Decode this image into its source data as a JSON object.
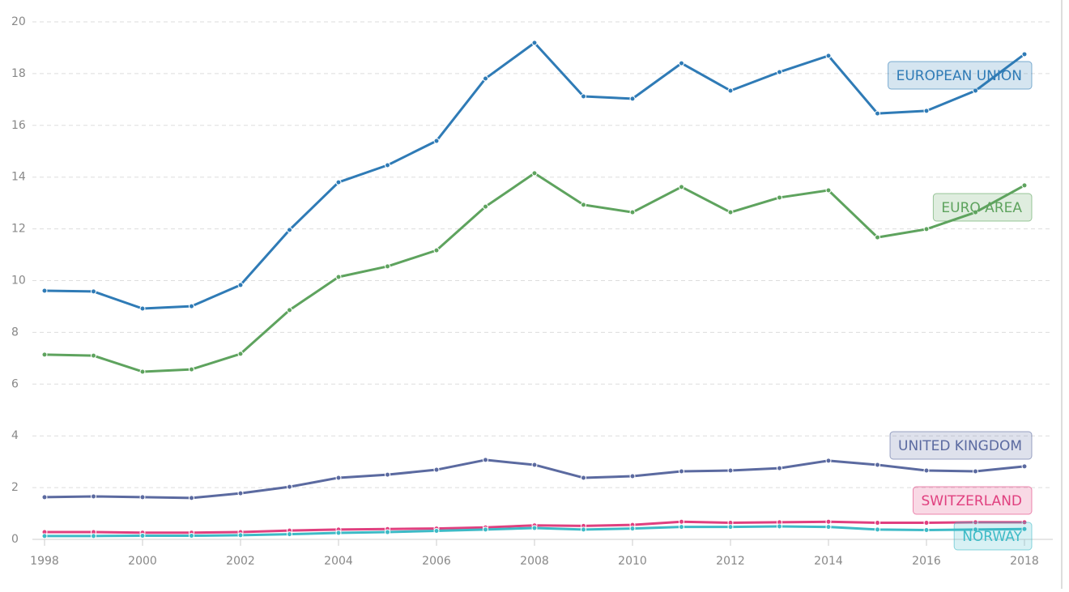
{
  "chart_data": {
    "type": "line",
    "x": [
      1998,
      1999,
      2000,
      2001,
      2002,
      2003,
      2004,
      2005,
      2006,
      2007,
      2008,
      2009,
      2010,
      2011,
      2012,
      2013,
      2014,
      2015,
      2016,
      2017,
      2018
    ],
    "xlim": [
      1998,
      2018
    ],
    "xticks": [
      1998,
      2000,
      2002,
      2004,
      2006,
      2008,
      2010,
      2012,
      2014,
      2016,
      2018
    ],
    "ylim": [
      0,
      20
    ],
    "yticks": [
      0,
      2,
      4,
      6,
      8,
      10,
      12,
      14,
      16,
      18,
      20
    ],
    "grid": true,
    "series": [
      {
        "name": "EUROPEAN UNION",
        "color": "#2f7bb6",
        "values": [
          9.61,
          9.58,
          8.92,
          9.01,
          9.83,
          11.96,
          13.8,
          14.46,
          15.4,
          17.81,
          19.19,
          17.12,
          17.03,
          18.4,
          17.34,
          18.06,
          18.69,
          16.46,
          16.56,
          17.34,
          18.75
        ]
      },
      {
        "name": "EURO AREA",
        "color": "#5ea35e",
        "values": [
          7.14,
          7.1,
          6.48,
          6.57,
          7.17,
          8.86,
          10.14,
          10.55,
          11.17,
          12.86,
          14.15,
          12.93,
          12.64,
          13.62,
          12.64,
          13.21,
          13.49,
          11.67,
          11.99,
          12.64,
          13.68
        ]
      },
      {
        "name": "UNITED KINGDOM",
        "color": "#5b6aa0",
        "values": [
          1.63,
          1.66,
          1.63,
          1.6,
          1.78,
          2.03,
          2.38,
          2.5,
          2.69,
          3.07,
          2.88,
          2.38,
          2.44,
          2.63,
          2.66,
          2.75,
          3.04,
          2.88,
          2.66,
          2.63,
          2.82
        ]
      },
      {
        "name": "SWITZERLAND",
        "color": "#e0407f",
        "values": [
          0.28,
          0.28,
          0.26,
          0.26,
          0.28,
          0.34,
          0.38,
          0.4,
          0.42,
          0.46,
          0.54,
          0.52,
          0.56,
          0.68,
          0.64,
          0.66,
          0.68,
          0.64,
          0.64,
          0.66,
          0.66
        ]
      },
      {
        "name": "NORWAY",
        "color": "#3dbac6",
        "values": [
          0.13,
          0.13,
          0.14,
          0.14,
          0.16,
          0.2,
          0.25,
          0.28,
          0.33,
          0.38,
          0.44,
          0.38,
          0.42,
          0.48,
          0.48,
          0.5,
          0.48,
          0.38,
          0.36,
          0.38,
          0.4
        ]
      }
    ]
  }
}
